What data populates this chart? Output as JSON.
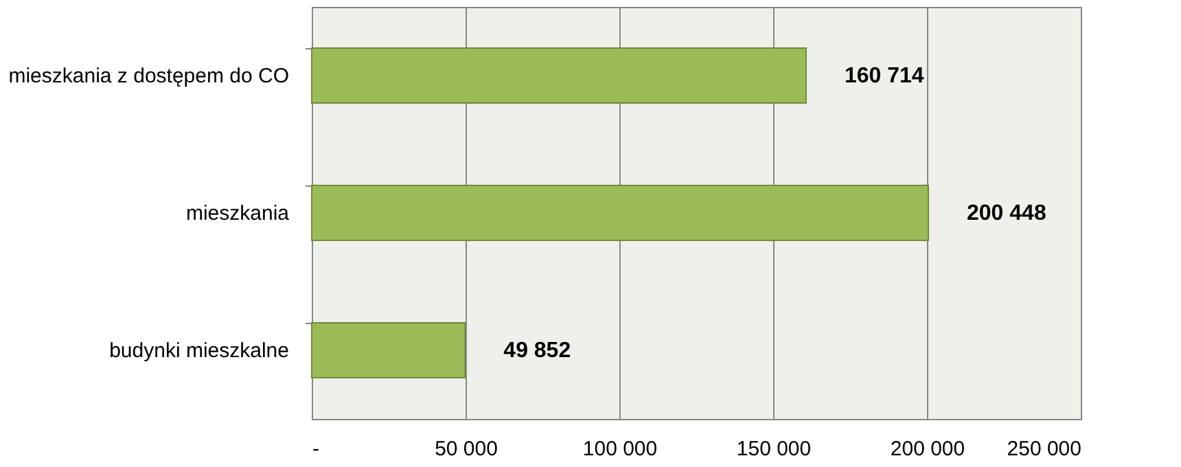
{
  "chart_data": {
    "type": "bar",
    "orientation": "horizontal",
    "categories": [
      "mieszkania z dostępem do CO",
      "mieszkania",
      "budynki mieszkalne"
    ],
    "values": [
      160714,
      200448,
      49852
    ],
    "color": "#9bbb59",
    "value_labels": [
      "160 714",
      "200 448",
      "49 852"
    ],
    "xlim": [
      0,
      250000
    ],
    "xticks": [
      {
        "value": 0,
        "label": "-"
      },
      {
        "value": 50000,
        "label": "50 000"
      },
      {
        "value": 100000,
        "label": "100 000"
      },
      {
        "value": 150000,
        "label": "150 000"
      },
      {
        "value": 200000,
        "label": "200 000"
      },
      {
        "value": 250000,
        "label": "250 000"
      }
    ],
    "grid": "x"
  }
}
